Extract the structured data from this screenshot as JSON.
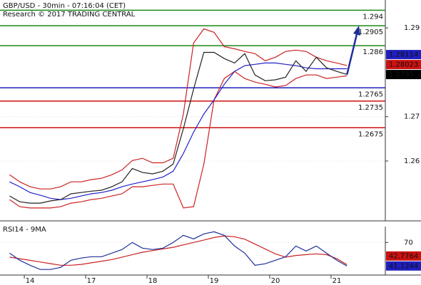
{
  "chart_data": [
    {
      "type": "line",
      "title": "GBP/USD - 30min - 07:16:04 (CET)",
      "subtitle": "Research © 2017 TRADING CENTRAL",
      "ylim": [
        1.2465,
        1.2963
      ],
      "yticks": [
        1.26,
        1.27,
        1.29
      ],
      "series": [
        {
          "color": "#cc2222",
          "values": [
            1.2569,
            1.2553,
            1.2542,
            1.2537,
            1.2537,
            1.2542,
            1.2553,
            1.2553,
            1.2558,
            1.2561,
            1.2569,
            1.258,
            1.2601,
            1.2606,
            1.2596,
            1.2596,
            1.2606,
            1.2706,
            1.2866,
            1.2898,
            1.289,
            1.2858,
            1.2853,
            1.2847,
            1.2842,
            1.2826,
            1.2834,
            1.2847,
            1.285,
            1.2847,
            1.2834,
            1.2826,
            1.2821,
            1.2815
          ]
        },
        {
          "color": "#cc2222",
          "values": [
            1.2513,
            1.2497,
            1.2494,
            1.2494,
            1.2494,
            1.2497,
            1.2505,
            1.2508,
            1.2513,
            1.2516,
            1.2521,
            1.2526,
            1.2542,
            1.2542,
            1.2545,
            1.2548,
            1.2548,
            1.2494,
            1.2497,
            1.2593,
            1.2738,
            1.2786,
            1.2802,
            1.2786,
            1.2778,
            1.2773,
            1.2767,
            1.277,
            1.2786,
            1.2794,
            1.2794,
            1.2786,
            1.2789,
            1.2792
          ]
        },
        {
          "color": "#2222cc",
          "values": [
            1.2553,
            1.2542,
            1.2529,
            1.2523,
            1.2516,
            1.2513,
            1.2516,
            1.2521,
            1.2526,
            1.2529,
            1.2534,
            1.2542,
            1.2548,
            1.2553,
            1.2558,
            1.2564,
            1.2577,
            1.2617,
            1.2665,
            1.2706,
            1.2738,
            1.2773,
            1.2802,
            1.2815,
            1.2818,
            1.2821,
            1.2821,
            1.2818,
            1.2815,
            1.281,
            1.2808,
            1.2808,
            1.2808,
            1.2808
          ]
        },
        {
          "color": "#222222",
          "values": [
            1.2521,
            1.2508,
            1.2505,
            1.2505,
            1.251,
            1.2513,
            1.2526,
            1.2529,
            1.2532,
            1.2534,
            1.2542,
            1.2553,
            1.2583,
            1.2574,
            1.2571,
            1.2577,
            1.2593,
            1.2673,
            1.2762,
            1.2845,
            1.2845,
            1.2831,
            1.2821,
            1.2842,
            1.2794,
            1.2781,
            1.2783,
            1.2789,
            1.2826,
            1.2802,
            1.2834,
            1.281,
            1.2802,
            1.2795
          ]
        }
      ],
      "levels": [
        {
          "value": 1.294,
          "color": "#1a8a1a"
        },
        {
          "value": 1.2905,
          "color": "#1a8a1a"
        },
        {
          "value": 1.286,
          "color": "#1a8a1a"
        },
        {
          "value": 1.2765,
          "color": "#1f1fbf"
        },
        {
          "value": 1.2735,
          "color": "#cc1111"
        },
        {
          "value": 1.2675,
          "color": "#cc1111"
        }
      ],
      "markers": [
        {
          "value": 1.2795,
          "color": "#000000"
        },
        {
          "value": 1.28023,
          "color": "#cc1111"
        },
        {
          "value": 1.28114,
          "color": "#1f1fbf"
        }
      ]
    },
    {
      "type": "line",
      "title": "RSI14 - 9MA",
      "categories": [
        null,
        null,
        "14",
        null,
        null,
        null,
        null,
        null,
        "17",
        null,
        null,
        null,
        null,
        null,
        "18",
        null,
        null,
        null,
        null,
        null,
        "19",
        null,
        null,
        null,
        null,
        null,
        "20",
        null,
        null,
        null,
        null,
        null,
        "21",
        null
      ],
      "ylim": [
        30,
        89.5
      ],
      "yticks": [
        70
      ],
      "series": [
        {
          "color": "#cc2222",
          "values": [
            52,
            50,
            48,
            46,
            44,
            42,
            42,
            43,
            45,
            47,
            49,
            52,
            55,
            58,
            60,
            62,
            64,
            67,
            70,
            73,
            76,
            78,
            77,
            74,
            68,
            62,
            56,
            52,
            54,
            55,
            56,
            55,
            50,
            42.7764
          ]
        },
        {
          "color": "#1f2f99",
          "values": [
            56.9,
            48.1,
            42.0,
            36.8,
            36.8,
            39.4,
            48.1,
            50.8,
            52.5,
            52.5,
            56.9,
            61.3,
            70.0,
            63.0,
            61.3,
            63.0,
            70.0,
            78.7,
            74.4,
            80.5,
            83.1,
            78.7,
            65.6,
            56.9,
            42.0,
            43.8,
            48.1,
            52.5,
            65.6,
            59.5,
            65.6,
            56.9,
            48.1,
            41.1244
          ]
        }
      ],
      "markers": [
        {
          "value": 41.1244,
          "color": "#1f1fbf"
        },
        {
          "value": 42.7764,
          "color": "#cc1111"
        }
      ]
    }
  ]
}
